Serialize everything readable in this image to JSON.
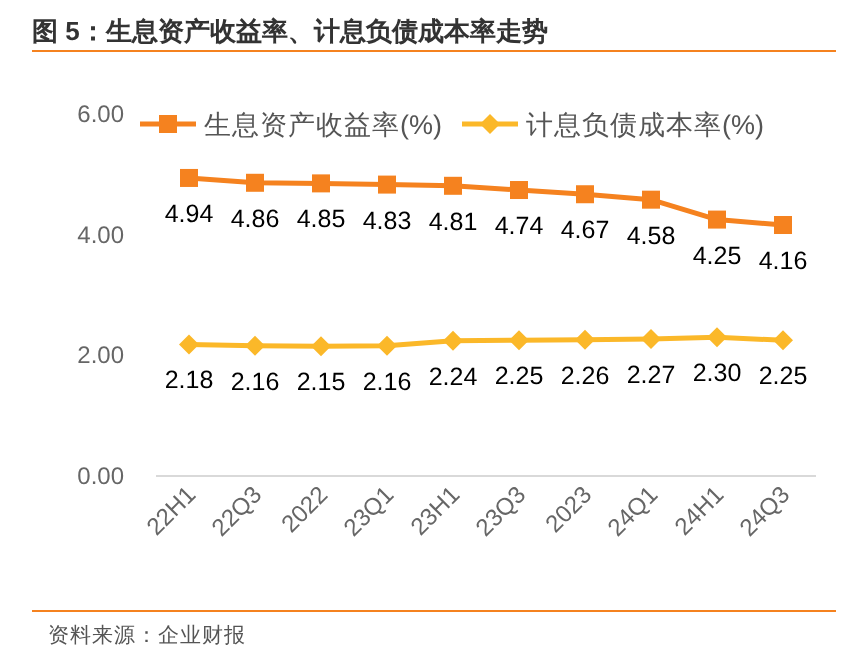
{
  "chart_data": {
    "type": "line",
    "title": "图 5：生息资产收益率、计息负债成本率走势",
    "categories": [
      "22H1",
      "22Q3",
      "2022",
      "23Q1",
      "23H1",
      "23Q3",
      "2023",
      "24Q1",
      "24H1",
      "24Q3"
    ],
    "series": [
      {
        "name": "生息资产收益率(%)",
        "color": "#f5821f",
        "marker": "square",
        "values": [
          4.94,
          4.86,
          4.85,
          4.83,
          4.81,
          4.74,
          4.67,
          4.58,
          4.25,
          4.16
        ],
        "value_labels": [
          "4.94",
          "4.86",
          "4.85",
          "4.83",
          "4.81",
          "4.74",
          "4.67",
          "4.58",
          "4.25",
          "4.16"
        ]
      },
      {
        "name": "计息负债成本率(%)",
        "color": "#fbb829",
        "marker": "diamond",
        "values": [
          2.18,
          2.16,
          2.15,
          2.16,
          2.24,
          2.25,
          2.26,
          2.27,
          2.3,
          2.25
        ],
        "value_labels": [
          "2.18",
          "2.16",
          "2.15",
          "2.16",
          "2.24",
          "2.25",
          "2.26",
          "2.27",
          "2.30",
          "2.25"
        ]
      }
    ],
    "ylim": [
      0,
      6
    ],
    "yticks": [
      {
        "value": 0,
        "label": "0.00"
      },
      {
        "value": 2,
        "label": "2.00"
      },
      {
        "value": 4,
        "label": "4.00"
      },
      {
        "value": 6,
        "label": "6.00"
      }
    ],
    "legend": "top",
    "grid": false,
    "annotations": [
      "资料来源：企业财报"
    ]
  }
}
